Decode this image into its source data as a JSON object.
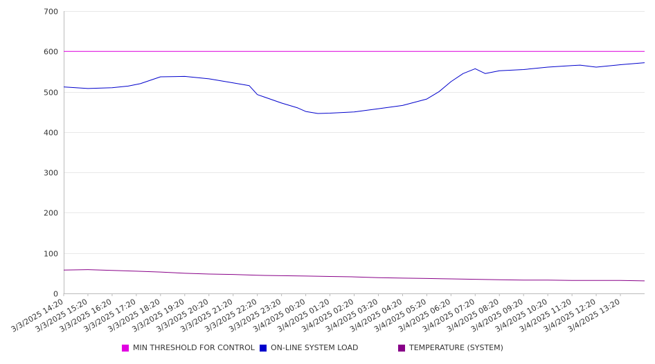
{
  "chart_data": {
    "type": "line",
    "ylim": [
      0,
      700
    ],
    "yticks": [
      0,
      100,
      200,
      300,
      400,
      500,
      600,
      700
    ],
    "x_start": "3/3/2025 14:20",
    "x_end": "3/4/2025 14:20",
    "xticks": [
      "3/3/2025 14:20",
      "3/3/2025 15:20",
      "3/3/2025 16:20",
      "3/3/2025 17:20",
      "3/3/2025 18:20",
      "3/3/2025 19:20",
      "3/3/2025 20:20",
      "3/3/2025 21:20",
      "3/3/2025 22:20",
      "3/3/2025 23:20",
      "3/4/2025 00:20",
      "3/4/2025 01:20",
      "3/4/2025 02:20",
      "3/4/2025 03:20",
      "3/4/2025 04:20",
      "3/4/2025 05:20",
      "3/4/2025 06:20",
      "3/4/2025 07:20",
      "3/4/2025 08:20",
      "3/4/2025 09:20",
      "3/4/2025 10:20",
      "3/4/2025 11:20",
      "3/4/2025 12:20",
      "3/4/2025 13:20"
    ],
    "grid": true,
    "legend_position": "bottom",
    "series": [
      {
        "name": "MIN THRESHOLD FOR CONTROL",
        "color": "#e100e1",
        "x": [
          "3/3/2025 14:20",
          "3/4/2025 14:20"
        ],
        "y": [
          600,
          600
        ]
      },
      {
        "name": "ON-LINE SYSTEM LOAD",
        "color": "#0000cc",
        "x": [
          "3/3/2025 14:20",
          "3/3/2025 15:20",
          "3/3/2025 16:20",
          "3/3/2025 17:00",
          "3/3/2025 17:30",
          "3/3/2025 18:20",
          "3/3/2025 19:20",
          "3/3/2025 20:20",
          "3/3/2025 21:20",
          "3/3/2025 22:00",
          "3/3/2025 22:20",
          "3/3/2025 23:20",
          "3/4/2025 00:00",
          "3/4/2025 00:20",
          "3/4/2025 00:50",
          "3/4/2025 01:20",
          "3/4/2025 02:20",
          "3/4/2025 03:20",
          "3/4/2025 04:20",
          "3/4/2025 05:20",
          "3/4/2025 05:50",
          "3/4/2025 06:20",
          "3/4/2025 06:50",
          "3/4/2025 07:20",
          "3/4/2025 07:45",
          "3/4/2025 08:20",
          "3/4/2025 09:20",
          "3/4/2025 10:20",
          "3/4/2025 11:20",
          "3/4/2025 11:40",
          "3/4/2025 12:20",
          "3/4/2025 13:20",
          "3/4/2025 14:20"
        ],
        "y": [
          512,
          508,
          510,
          514,
          520,
          537,
          538,
          532,
          522,
          515,
          493,
          472,
          460,
          451,
          446,
          447,
          450,
          458,
          466,
          482,
          500,
          525,
          545,
          557,
          545,
          552,
          555,
          561,
          565,
          566,
          561,
          567,
          572
        ]
      },
      {
        "name": "TEMPERATURE (SYSTEM)",
        "color": "#880088",
        "x": [
          "3/3/2025 14:20",
          "3/3/2025 15:20",
          "3/3/2025 16:20",
          "3/3/2025 17:20",
          "3/3/2025 18:20",
          "3/3/2025 19:20",
          "3/3/2025 20:20",
          "3/3/2025 21:20",
          "3/3/2025 22:20",
          "3/3/2025 23:20",
          "3/4/2025 00:20",
          "3/4/2025 01:20",
          "3/4/2025 02:20",
          "3/4/2025 03:20",
          "3/4/2025 04:20",
          "3/4/2025 05:20",
          "3/4/2025 06:20",
          "3/4/2025 07:20",
          "3/4/2025 08:20",
          "3/4/2025 09:20",
          "3/4/2025 10:20",
          "3/4/2025 11:20",
          "3/4/2025 12:20",
          "3/4/2025 13:20",
          "3/4/2025 14:20"
        ],
        "y": [
          58,
          59,
          57,
          55,
          53,
          50,
          48,
          47,
          45,
          44,
          43,
          42,
          41,
          39,
          38,
          37,
          36,
          35,
          34,
          33,
          33,
          32,
          32,
          32,
          31
        ]
      }
    ]
  }
}
